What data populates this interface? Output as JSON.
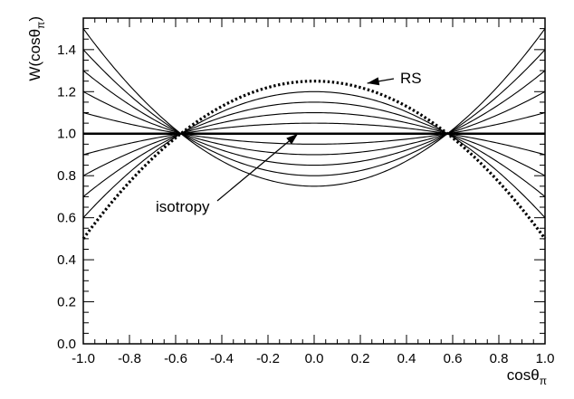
{
  "chart_data": {
    "type": "line",
    "xlabel": "cosθ",
    "xlabel_sub": "π",
    "ylabel": "W(cosθ",
    "ylabel_sub": "π",
    "ylabel_close": ")",
    "xlim": [
      -1.0,
      1.0
    ],
    "ylim": [
      0.0,
      1.55
    ],
    "xticks": [
      -1.0,
      -0.8,
      -0.6,
      -0.4,
      -0.2,
      0.0,
      0.2,
      0.4,
      0.6,
      0.8,
      1.0
    ],
    "xtick_labels": [
      "-1.0",
      "-0.8",
      "-0.6",
      "-0.4",
      "-0.2",
      "0.0",
      "0.2",
      "0.4",
      "0.6",
      "0.8",
      "1.0"
    ],
    "yticks": [
      0.0,
      0.2,
      0.4,
      0.6,
      0.8,
      1.0,
      1.2,
      1.4
    ],
    "ytick_labels": [
      "0.0",
      "0.2",
      "0.4",
      "0.6",
      "0.8",
      "1.0",
      "1.2",
      "1.4"
    ],
    "function": "W(c) = 1 + a*(3c^2 - 1)/2",
    "x": [
      -1.0,
      -0.9,
      -0.8,
      -0.7,
      -0.6,
      -0.5,
      -0.4,
      -0.3,
      -0.2,
      -0.1,
      0.0,
      0.1,
      0.2,
      0.3,
      0.4,
      0.5,
      0.6,
      0.7,
      0.8,
      0.9,
      1.0
    ],
    "series": [
      {
        "style": "solid",
        "a": 0.5,
        "values_at_0_and_1": [
          0.75,
          1.5
        ]
      },
      {
        "style": "solid",
        "a": 0.4,
        "values_at_0_and_1": [
          0.8,
          1.4
        ]
      },
      {
        "style": "solid",
        "a": 0.3,
        "values_at_0_and_1": [
          0.85,
          1.3
        ]
      },
      {
        "style": "solid",
        "a": 0.2,
        "values_at_0_and_1": [
          0.9,
          1.2
        ]
      },
      {
        "style": "solid",
        "a": 0.1,
        "values_at_0_and_1": [
          0.95,
          1.1
        ]
      },
      {
        "style": "thick",
        "a": 0.0,
        "values_at_0_and_1": [
          1.0,
          1.0
        ]
      },
      {
        "style": "solid",
        "a": -0.1,
        "values_at_0_and_1": [
          1.05,
          0.9
        ]
      },
      {
        "style": "solid",
        "a": -0.2,
        "values_at_0_and_1": [
          1.1,
          0.8
        ]
      },
      {
        "style": "solid",
        "a": -0.3,
        "values_at_0_and_1": [
          1.15,
          0.7
        ]
      },
      {
        "style": "solid",
        "a": -0.4,
        "values_at_0_and_1": [
          1.2,
          0.6
        ]
      },
      {
        "style": "dotted",
        "a": -0.5,
        "values_at_0_and_1": [
          1.25,
          0.5
        ]
      }
    ],
    "annotations": [
      {
        "text": "RS",
        "arrow_to": [
          0.23,
          1.24
        ]
      },
      {
        "text": "isotropy",
        "arrow_to": [
          -0.07,
          1.0
        ]
      }
    ]
  }
}
